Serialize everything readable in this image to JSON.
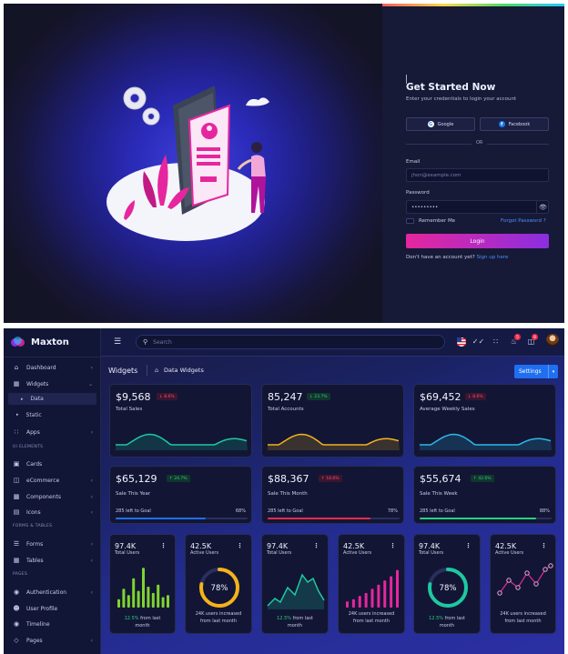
{
  "login": {
    "title": "Get Started Now",
    "subtitle": "Enter your credentials to login your account",
    "google_label": "Google",
    "facebook_label": "Facebook",
    "or_label": "OR",
    "email_label": "Email",
    "email_placeholder": "jhon@example.com",
    "password_label": "Password",
    "password_value": "•••••••••",
    "remember_label": "Remember Me",
    "forgot_label": "Forgot Password ?",
    "login_button": "Login",
    "signup_prompt": "Don't have an account yet?",
    "signup_link": "Sign up here"
  },
  "brand": {
    "name": "Maxton"
  },
  "sidebar": {
    "items": [
      {
        "label": "Dashboard",
        "icon": "home-icon"
      },
      {
        "label": "Widgets",
        "icon": "widgets-icon"
      },
      {
        "label": "Data"
      },
      {
        "label": "Static"
      },
      {
        "label": "Apps",
        "icon": "apps-icon"
      },
      {
        "label": "Cards",
        "icon": "cards-icon"
      },
      {
        "label": "eCommerce",
        "icon": "cart-icon"
      },
      {
        "label": "Components",
        "icon": "components-icon"
      },
      {
        "label": "Icons",
        "icon": "icons-icon"
      },
      {
        "label": "Forms",
        "icon": "forms-icon"
      },
      {
        "label": "Tables",
        "icon": "tables-icon"
      },
      {
        "label": "Authentication",
        "icon": "lock-icon"
      },
      {
        "label": "User Profile",
        "icon": "user-icon"
      },
      {
        "label": "Timeline",
        "icon": "timeline-icon"
      },
      {
        "label": "Pages",
        "icon": "pages-icon"
      }
    ],
    "sections": [
      "UI ELEMENTS",
      "FORMS & TABLES",
      "PAGES"
    ]
  },
  "topbar": {
    "search_placeholder": "Search",
    "notification_count": "5",
    "cart_count": "8"
  },
  "breadcrumb": {
    "title": "Widgets",
    "item": "Data Widgets"
  },
  "settings_button": "Settings",
  "stat_cards": [
    {
      "value": "$9,568",
      "change": "↓ 8.6%",
      "label": "Total Sales",
      "color": "#1ec9a0",
      "trend": "down"
    },
    {
      "value": "85,247",
      "change": "↓ 23.7%",
      "label": "Total Accounts",
      "color": "#f5b21b",
      "trend": "up"
    },
    {
      "value": "$69,452",
      "change": "↓ 8.6%",
      "label": "Average Weekly Sales",
      "color": "#2fb7e8",
      "trend": "down"
    }
  ],
  "goal_cards": [
    {
      "value": "$65,129",
      "change": "↑ 24.7%",
      "label": "Sale This Year",
      "goal": "285 left to Goal",
      "percent_label": "68%",
      "progress": 0.68,
      "color": "#1f6ff0",
      "trend": "up"
    },
    {
      "value": "$88,367",
      "change": "↑ 18.6%",
      "label": "Sale This Month",
      "goal": "285 left to Goal",
      "percent_label": "78%",
      "progress": 0.78,
      "color": "#ef2b4a",
      "trend": "down"
    },
    {
      "value": "$55,674",
      "change": "↑ 42.6%",
      "label": "Sale This Week",
      "goal": "285 left to Goal",
      "percent_label": "88%",
      "progress": 0.88,
      "color": "#27d17f",
      "trend": "up"
    }
  ],
  "small_cards": [
    {
      "value": "97.4K",
      "label": "Total Users",
      "footer_highlight": "12.5%",
      "footer_text": " from last",
      "footer_line2": "month",
      "chart": "bars",
      "color": "#7fd42e"
    },
    {
      "value": "42.5K",
      "label": "Active Users",
      "ring": "78%",
      "ring_value": 0.78,
      "footer_line1": "24K users increased",
      "footer_line2": "from last month",
      "chart": "ring",
      "color": "#ef2b4a"
    },
    {
      "value": "97.4K",
      "label": "Total Users",
      "footer_highlight": "12.5%",
      "footer_text": " from last",
      "footer_line2": "month",
      "chart": "area",
      "color": "#1ec9a0"
    },
    {
      "value": "42.5K",
      "label": "Active Users",
      "footer_line1": "24K users increased",
      "footer_line2": "from last month",
      "chart": "bars",
      "color": "#e6269e"
    },
    {
      "value": "97.4K",
      "label": "Total Users",
      "ring": "78%",
      "ring_value": 0.78,
      "footer_highlight": "12.5%",
      "footer_text": " from last",
      "footer_line2": "month",
      "chart": "ring",
      "color": "#1ec9a0"
    },
    {
      "value": "42.5K",
      "label": "Active Users",
      "footer_line1": "24K users increased",
      "footer_line2": "from last month",
      "chart": "line",
      "color": "#e6269e"
    }
  ]
}
